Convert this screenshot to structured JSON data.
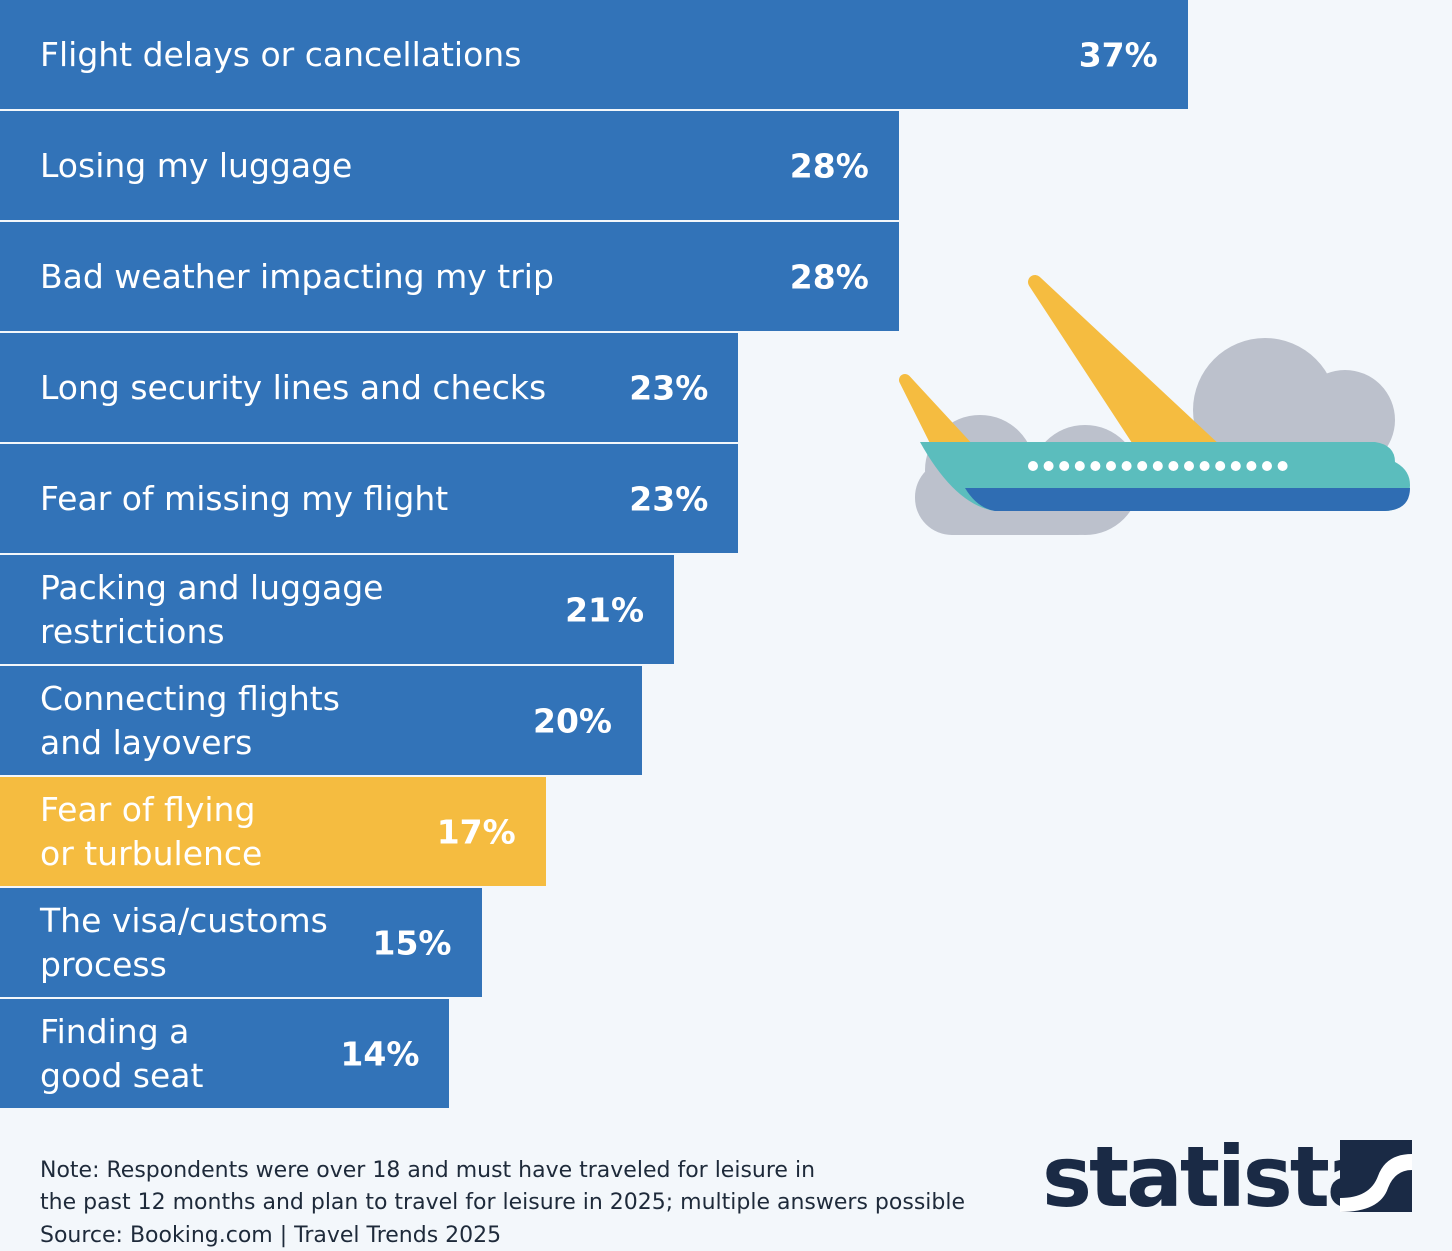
{
  "chart_data": {
    "type": "bar",
    "orientation": "horizontal",
    "categories": [
      "Flight delays or cancellations",
      "Losing my luggage",
      "Bad weather impacting my trip",
      "Long security lines and checks",
      "Fear of missing my flight",
      "Packing and luggage\nrestrictions",
      "Connecting flights\nand layovers",
      "Fear of flying\nor turbulence",
      "The visa/customs\nprocess",
      "Finding a\ngood seat"
    ],
    "values": [
      37,
      28,
      28,
      23,
      23,
      21,
      20,
      17,
      15,
      14
    ],
    "value_labels": [
      "37%",
      "28%",
      "28%",
      "23%",
      "23%",
      "21%",
      "20%",
      "17%",
      "15%",
      "14%"
    ],
    "colors": [
      "#3273b8",
      "#3273b8",
      "#3273b8",
      "#3273b8",
      "#3273b8",
      "#3273b8",
      "#3273b8",
      "#f5bc40",
      "#3273b8",
      "#3273b8"
    ],
    "note": "Note: Respondents were over 18 and must have traveled for leisure in\nthe past 12 months and plan to travel for leisure in 2025; multiple answers possible",
    "source": "Source: Booking.com | Travel Trends 2025",
    "logo": "statista"
  }
}
